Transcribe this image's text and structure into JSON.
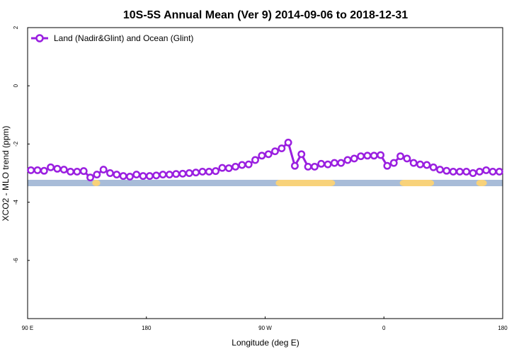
{
  "chart_data": {
    "type": "line",
    "title": "10S-5S Annual Mean (Ver 9)   2014-09-06 to 2018-12-31",
    "xlabel": "Longitude (deg E)",
    "ylabel": "XCO2 - MLO trend (ppm)",
    "xlim": [
      90,
      450
    ],
    "ylim": [
      -8,
      2
    ],
    "x_ticks": [
      {
        "value": 90,
        "label": "90 E"
      },
      {
        "value": 180,
        "label": "180"
      },
      {
        "value": 270,
        "label": "90 W"
      },
      {
        "value": 360,
        "label": "0"
      },
      {
        "value": 450,
        "label": "180"
      }
    ],
    "y_ticks": [
      {
        "value": 2,
        "label": "2"
      },
      {
        "value": 0,
        "label": "0"
      },
      {
        "value": -2,
        "label": "-2"
      },
      {
        "value": -4,
        "label": "-4"
      },
      {
        "value": -6,
        "label": "-6"
      }
    ],
    "legend_position": "top-left",
    "grid": false,
    "series": [
      {
        "name": "Land (Nadir&Glint) and Ocean (Glint)",
        "color": "#9a1fe0",
        "x": [
          92.5,
          97.5,
          102.5,
          107.5,
          112.5,
          117.5,
          122.5,
          127.5,
          132.5,
          137.5,
          142.5,
          147.5,
          152.5,
          157.5,
          162.5,
          167.5,
          172.5,
          177.5,
          182.5,
          187.5,
          192.5,
          197.5,
          202.5,
          207.5,
          212.5,
          217.5,
          222.5,
          227.5,
          232.5,
          237.5,
          242.5,
          247.5,
          252.5,
          257.5,
          262.5,
          267.5,
          272.5,
          277.5,
          282.5,
          287.5,
          292.5,
          297.5,
          302.5,
          307.5,
          312.5,
          317.5,
          322.5,
          327.5,
          332.5,
          337.5,
          342.5,
          347.5,
          352.5,
          357.5,
          362.5,
          367.5,
          372.5,
          377.5,
          382.5,
          387.5,
          392.5,
          397.5,
          402.5,
          407.5,
          412.5,
          417.5,
          422.5,
          427.5,
          432.5,
          437.5,
          442.5,
          447.5
        ],
        "y": [
          -2.9,
          -2.9,
          -2.92,
          -2.8,
          -2.85,
          -2.88,
          -2.95,
          -2.95,
          -2.93,
          -3.15,
          -3.05,
          -2.88,
          -3.0,
          -3.05,
          -3.1,
          -3.12,
          -3.05,
          -3.1,
          -3.1,
          -3.08,
          -3.05,
          -3.05,
          -3.03,
          -3.02,
          -3.0,
          -2.98,
          -2.95,
          -2.95,
          -2.93,
          -2.82,
          -2.83,
          -2.78,
          -2.72,
          -2.7,
          -2.55,
          -2.4,
          -2.35,
          -2.25,
          -2.15,
          -1.95,
          -2.75,
          -2.35,
          -2.78,
          -2.78,
          -2.68,
          -2.7,
          -2.65,
          -2.65,
          -2.55,
          -2.5,
          -2.42,
          -2.4,
          -2.4,
          -2.38,
          -2.75,
          -2.65,
          -2.42,
          -2.5,
          -2.65,
          -2.7,
          -2.72,
          -2.8,
          -2.88,
          -2.92,
          -2.95,
          -2.95,
          -2.95,
          -3.0,
          -2.95,
          -2.9,
          -2.95,
          -2.95
        ]
      }
    ],
    "map_strip": {
      "ocean_color": "#a8bcd8",
      "land_color": "#f8d27a",
      "land_segments": [
        [
          139,
          145
        ],
        [
          278,
          323
        ],
        [
          372,
          398
        ],
        [
          430,
          438
        ]
      ]
    }
  }
}
